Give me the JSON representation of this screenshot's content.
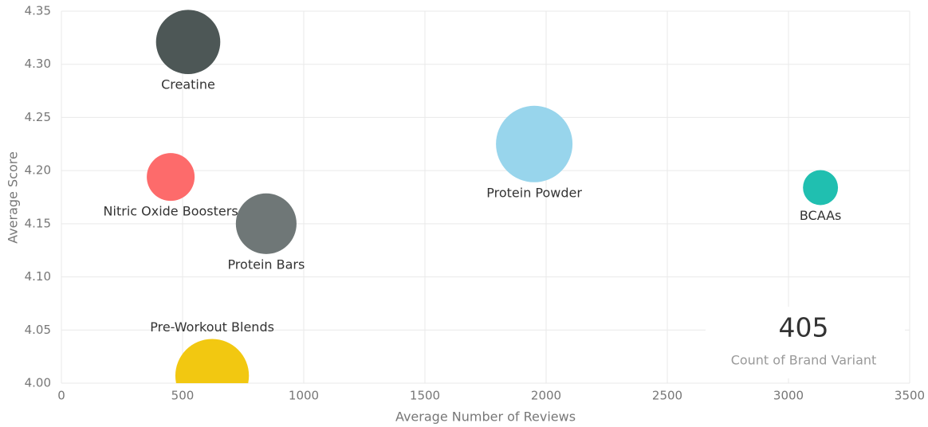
{
  "chart_data": {
    "type": "bubble",
    "x_label": "Average Number of Reviews",
    "y_label": "Average Score",
    "xlim": [
      0,
      3500
    ],
    "xticks": [
      0,
      500,
      1000,
      1500,
      2000,
      2500,
      3000,
      3500
    ],
    "ylim": [
      4,
      4.35
    ],
    "yticks": [
      {
        "value": 4,
        "label": "4.00"
      },
      4.05,
      {
        "value": 4.1,
        "label": "4.10"
      },
      4.15,
      {
        "value": 4.2,
        "label": "4.20"
      },
      4.25,
      {
        "value": 4.3,
        "label": "4.30"
      },
      4.35
    ],
    "grid": true,
    "series": [
      {
        "name": "Creatine",
        "color": "#4d5756",
        "x": [
          523
        ],
        "values": [
          4.321
        ],
        "sizes": [
          74
        ]
      },
      {
        "name": "Protein Powder",
        "color": "#98d5ec",
        "x": [
          1951
        ],
        "values": [
          4.225
        ],
        "sizes": [
          105
        ]
      },
      {
        "name": "Nitric Oxide Boosters",
        "color": "#fd6b6b",
        "x": [
          451
        ],
        "values": [
          4.194
        ],
        "sizes": [
          41
        ]
      },
      {
        "name": "Protein Bars",
        "color": "#6f7777",
        "x": [
          845
        ],
        "values": [
          4.15
        ],
        "sizes": [
          66
        ]
      },
      {
        "name": "BCAAs",
        "color": "#20bfb0",
        "x": [
          3132
        ],
        "values": [
          4.184
        ],
        "sizes": [
          22
        ]
      },
      {
        "name": "Pre-Workout Blends",
        "color": "#f2c811",
        "x": [
          622
        ],
        "values": [
          4.007
        ],
        "sizes": [
          97
        ]
      }
    ],
    "card": {
      "value": 405,
      "label": "Count of Brand Variant"
    }
  }
}
